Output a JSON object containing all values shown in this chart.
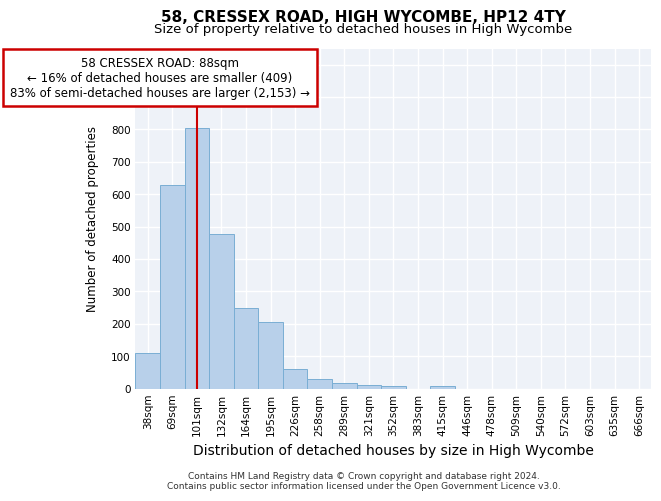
{
  "title": "58, CRESSEX ROAD, HIGH WYCOMBE, HP12 4TY",
  "subtitle": "Size of property relative to detached houses in High Wycombe",
  "xlabel": "Distribution of detached houses by size in High Wycombe",
  "ylabel": "Number of detached properties",
  "footnote1": "Contains HM Land Registry data © Crown copyright and database right 2024.",
  "footnote2": "Contains public sector information licensed under the Open Government Licence v3.0.",
  "categories": [
    "38sqm",
    "69sqm",
    "101sqm",
    "132sqm",
    "164sqm",
    "195sqm",
    "226sqm",
    "258sqm",
    "289sqm",
    "321sqm",
    "352sqm",
    "383sqm",
    "415sqm",
    "446sqm",
    "478sqm",
    "509sqm",
    "540sqm",
    "572sqm",
    "603sqm",
    "635sqm",
    "666sqm"
  ],
  "values": [
    110,
    630,
    805,
    478,
    249,
    204,
    60,
    28,
    18,
    12,
    8,
    0,
    8,
    0,
    0,
    0,
    0,
    0,
    0,
    0,
    0
  ],
  "bar_color": "#b8d0ea",
  "bar_edge_color": "#7aaed4",
  "property_line_x": 2.0,
  "property_label": "58 CRESSEX ROAD: 88sqm",
  "annotation_line1": "← 16% of detached houses are smaller (409)",
  "annotation_line2": "83% of semi-detached houses are larger (2,153) →",
  "annotation_box_color": "#ffffff",
  "annotation_box_edge_color": "#cc0000",
  "property_line_color": "#cc0000",
  "ylim": [
    0,
    1050
  ],
  "background_color": "#eef2f8",
  "grid_color": "#ffffff",
  "title_fontsize": 11,
  "subtitle_fontsize": 9.5,
  "xlabel_fontsize": 10,
  "ylabel_fontsize": 8.5,
  "tick_fontsize": 7.5,
  "annotation_fontsize": 8.5,
  "footnote_fontsize": 6.5
}
